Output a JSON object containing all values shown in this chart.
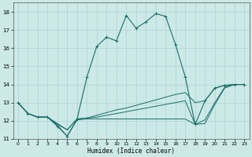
{
  "xlabel": "Humidex (Indice chaleur)",
  "bg_color": "#cce9e7",
  "grid_color": "#aad4d1",
  "line_color": "#1a6e6a",
  "xlim": [
    -0.5,
    23.5
  ],
  "ylim": [
    11.0,
    18.5
  ],
  "yticks": [
    11,
    12,
    13,
    14,
    15,
    16,
    17,
    18
  ],
  "xticks": [
    0,
    1,
    2,
    3,
    4,
    5,
    6,
    7,
    8,
    9,
    10,
    11,
    12,
    13,
    14,
    15,
    16,
    17,
    18,
    19,
    20,
    21,
    22,
    23
  ],
  "series": [
    {
      "x": [
        0,
        1,
        2,
        3,
        4,
        5,
        6,
        7,
        8,
        9,
        10,
        11,
        12,
        13,
        14,
        15,
        16,
        17,
        18,
        19,
        20,
        21,
        22,
        23
      ],
      "y": [
        13.0,
        12.4,
        12.2,
        12.2,
        11.7,
        11.15,
        12.1,
        14.4,
        16.1,
        16.6,
        16.4,
        17.8,
        17.1,
        17.45,
        17.9,
        17.75,
        16.2,
        14.4,
        11.8,
        13.1,
        13.8,
        13.95,
        14.0,
        14.0
      ],
      "marker": true
    },
    {
      "x": [
        0,
        1,
        2,
        3,
        4,
        5,
        6,
        7,
        8,
        9,
        10,
        11,
        12,
        13,
        14,
        15,
        16,
        17,
        18,
        19,
        20,
        21,
        22,
        23
      ],
      "y": [
        13.0,
        12.4,
        12.2,
        12.2,
        11.8,
        11.5,
        12.1,
        12.15,
        12.3,
        12.45,
        12.6,
        12.7,
        12.85,
        13.0,
        13.15,
        13.3,
        13.45,
        13.55,
        13.0,
        13.1,
        13.8,
        13.95,
        14.0,
        14.0
      ],
      "marker": false
    },
    {
      "x": [
        0,
        1,
        2,
        3,
        4,
        5,
        6,
        7,
        8,
        9,
        10,
        11,
        12,
        13,
        14,
        15,
        16,
        17,
        18,
        19,
        20,
        21,
        22,
        23
      ],
      "y": [
        13.0,
        12.4,
        12.2,
        12.2,
        11.85,
        11.5,
        12.1,
        12.15,
        12.2,
        12.3,
        12.4,
        12.5,
        12.6,
        12.7,
        12.8,
        12.9,
        13.0,
        13.1,
        11.8,
        12.05,
        13.0,
        13.85,
        14.0,
        14.0
      ],
      "marker": false
    },
    {
      "x": [
        0,
        1,
        2,
        3,
        4,
        5,
        6,
        7,
        8,
        9,
        10,
        11,
        12,
        13,
        14,
        15,
        16,
        17,
        18,
        19,
        20,
        21,
        22,
        23
      ],
      "y": [
        13.0,
        12.4,
        12.2,
        12.2,
        11.75,
        11.15,
        12.05,
        12.1,
        12.1,
        12.1,
        12.1,
        12.1,
        12.1,
        12.1,
        12.1,
        12.1,
        12.1,
        12.1,
        11.8,
        11.85,
        12.9,
        13.8,
        14.0,
        14.0
      ],
      "marker": false
    }
  ]
}
